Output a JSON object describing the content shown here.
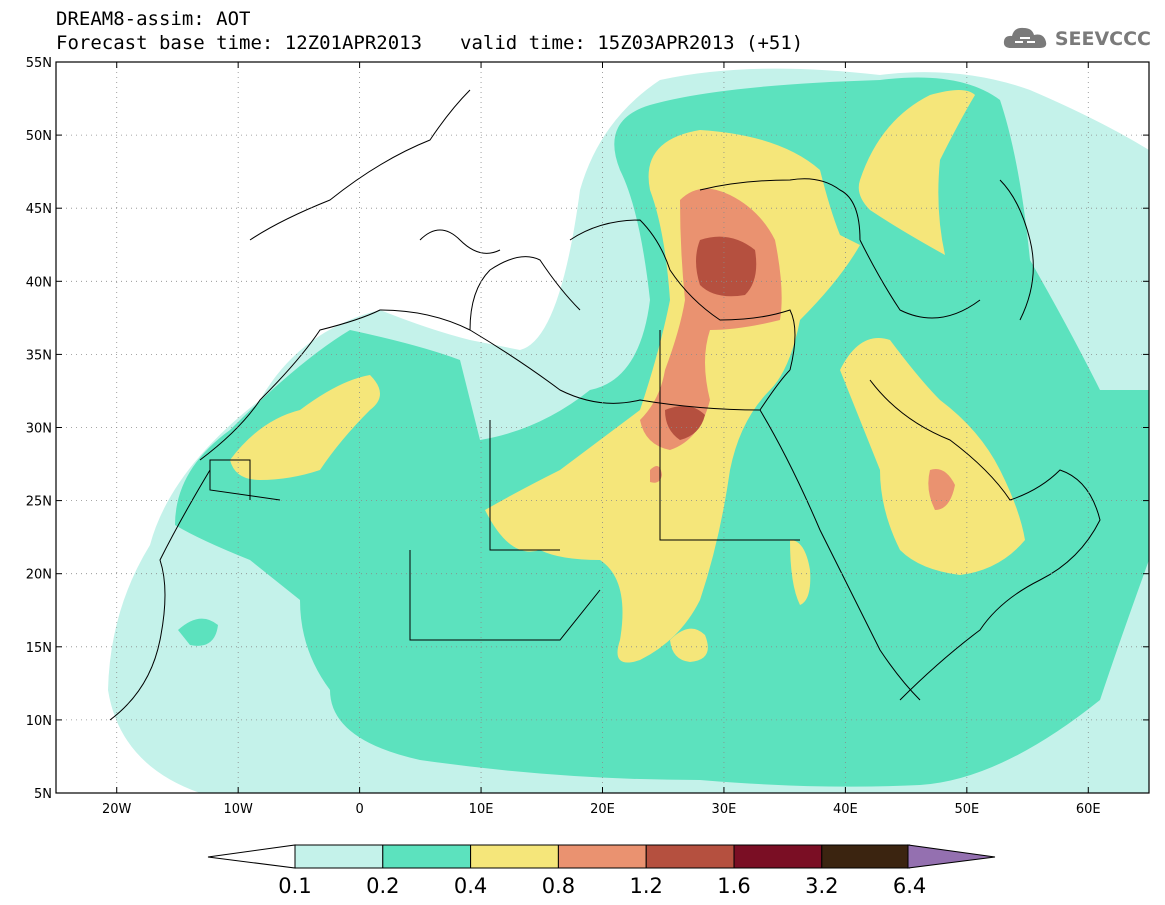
{
  "header": {
    "title": "DREAM8-assim: AOT",
    "base_time": "Forecast base time: 12Z01APR2013",
    "valid_time": "valid time: 15Z03APR2013 (+51)"
  },
  "logo": {
    "text": "SEEVCCC",
    "icon": "cloud-icon",
    "color": "#7a7a7a"
  },
  "map": {
    "projection": "lat-lon",
    "lon_range": [
      -25,
      65
    ],
    "lat_range": [
      5,
      55
    ],
    "grid": "dotted",
    "lat_ticks": [
      "5N",
      "10N",
      "15N",
      "20N",
      "25N",
      "30N",
      "35N",
      "40N",
      "45N",
      "50N",
      "55N"
    ],
    "lon_ticks": [
      "20W",
      "10W",
      "0",
      "10E",
      "20E",
      "30E",
      "40E",
      "50E",
      "60E"
    ]
  },
  "colorbar": {
    "levels": [
      "0.1",
      "0.2",
      "0.4",
      "0.8",
      "1.2",
      "1.6",
      "3.2",
      "6.4"
    ],
    "colors": [
      "#c4f2ea",
      "#5ce2be",
      "#f5e67a",
      "#ea9270",
      "#b5503f",
      "#7a0e24",
      "#3b2410",
      "#9470b0"
    ],
    "below_color": "#ffffff"
  }
}
